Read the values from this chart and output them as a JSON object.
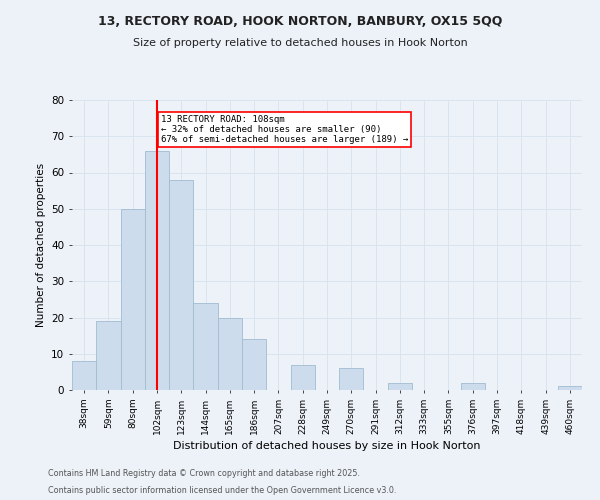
{
  "title_line1": "13, RECTORY ROAD, HOOK NORTON, BANBURY, OX15 5QQ",
  "title_line2": "Size of property relative to detached houses in Hook Norton",
  "xlabel": "Distribution of detached houses by size in Hook Norton",
  "ylabel": "Number of detached properties",
  "categories": [
    "38sqm",
    "59sqm",
    "80sqm",
    "102sqm",
    "123sqm",
    "144sqm",
    "165sqm",
    "186sqm",
    "207sqm",
    "228sqm",
    "249sqm",
    "270sqm",
    "291sqm",
    "312sqm",
    "333sqm",
    "355sqm",
    "376sqm",
    "397sqm",
    "418sqm",
    "439sqm",
    "460sqm"
  ],
  "values": [
    8,
    19,
    50,
    66,
    58,
    24,
    20,
    14,
    0,
    7,
    0,
    6,
    0,
    2,
    0,
    0,
    2,
    0,
    0,
    0,
    1
  ],
  "bar_color": "#ccdcec",
  "bar_edge_color": "#a0bcd0",
  "grid_color": "#d8e4f0",
  "background_color": "#edf2f9",
  "vline_x": 3.0,
  "vline_color": "red",
  "annotation_text": "13 RECTORY ROAD: 108sqm\n← 32% of detached houses are smaller (90)\n67% of semi-detached houses are larger (189) →",
  "annotation_box_color": "white",
  "annotation_box_edge_color": "red",
  "ylim": [
    0,
    80
  ],
  "yticks": [
    0,
    10,
    20,
    30,
    40,
    50,
    60,
    70,
    80
  ],
  "footnote1": "Contains HM Land Registry data © Crown copyright and database right 2025.",
  "footnote2": "Contains public sector information licensed under the Open Government Licence v3.0."
}
